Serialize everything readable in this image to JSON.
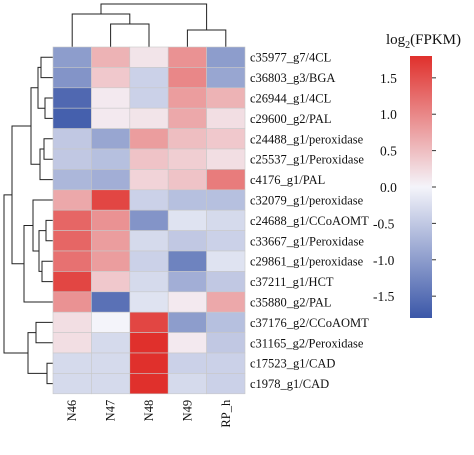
{
  "chart_data": {
    "type": "heatmap",
    "legend_title": "log₂(FPKM)",
    "legend_title_main": "log",
    "legend_title_sub": "2",
    "legend_title_rest": "(FPKM)",
    "legend_placement": "right",
    "color_range": [
      -1.8,
      1.8
    ],
    "color_low": "#3b57a8",
    "color_mid": "#f4f4fa",
    "color_high": "#e0302c",
    "legend_ticks": [
      {
        "value": 1.5,
        "label": "1.5"
      },
      {
        "value": 1.0,
        "label": "1.0"
      },
      {
        "value": 0.5,
        "label": "0.5"
      },
      {
        "value": 0.0,
        "label": "0.0"
      },
      {
        "value": -0.5,
        "label": "-0.5"
      },
      {
        "value": -1.0,
        "label": "-1.0"
      },
      {
        "value": -1.5,
        "label": "-1.5"
      }
    ],
    "columns": [
      "N46",
      "N47",
      "N48",
      "N49",
      "RP_h"
    ],
    "rows": [
      {
        "label": "c35977_g7/4CL",
        "values": [
          -1.0,
          0.6,
          0.15,
          0.9,
          -1.0
        ]
      },
      {
        "label": "c36803_g3/BGA",
        "values": [
          -1.1,
          0.4,
          -0.4,
          1.0,
          -0.9
        ]
      },
      {
        "label": "c26944_g1/4CL",
        "values": [
          -1.6,
          0.1,
          -0.4,
          0.8,
          0.6
        ]
      },
      {
        "label": "c29600_g2/PAL",
        "values": [
          -1.7,
          0.1,
          0.15,
          0.7,
          0.2
        ]
      },
      {
        "label": "c24488_g1/peroxidase",
        "values": [
          -0.5,
          -0.9,
          0.8,
          0.5,
          0.4
        ]
      },
      {
        "label": "c25537_g1/Peroxidase",
        "values": [
          -0.5,
          -0.6,
          0.45,
          0.35,
          0.2
        ]
      },
      {
        "label": "c4176_g1/PAL",
        "values": [
          -0.7,
          -0.8,
          0.3,
          0.45,
          1.1
        ]
      },
      {
        "label": "c32079_g1/peroxidase",
        "values": [
          0.7,
          1.6,
          -0.4,
          -0.6,
          -0.6
        ]
      },
      {
        "label": "c24688_g1/CCoAOMT",
        "values": [
          1.3,
          0.9,
          -1.1,
          -0.2,
          -0.3
        ]
      },
      {
        "label": "c33667_g1/Peroxidase",
        "values": [
          1.3,
          0.8,
          -0.3,
          -0.5,
          -0.4
        ]
      },
      {
        "label": "c29861_g1/peroxidase",
        "values": [
          1.2,
          0.8,
          -0.4,
          -1.3,
          -0.2
        ]
      },
      {
        "label": "c37211_g1/HCT",
        "values": [
          1.6,
          0.4,
          -0.3,
          -0.8,
          -0.5
        ]
      },
      {
        "label": "c35880_g2/PAL",
        "values": [
          0.9,
          -1.5,
          -0.2,
          0.1,
          0.7
        ]
      },
      {
        "label": "c37176_g2/CCoAOMT",
        "values": [
          0.2,
          0.0,
          1.6,
          -1.0,
          -0.6
        ]
      },
      {
        "label": "c31165_g2/Peroxidase",
        "values": [
          0.2,
          -0.3,
          1.8,
          0.1,
          -0.5
        ]
      },
      {
        "label": "c17523_g1/CAD",
        "values": [
          -0.3,
          -0.3,
          1.8,
          -0.4,
          -0.4
        ]
      },
      {
        "label": "c1978_g1/CAD",
        "values": [
          -0.3,
          -0.3,
          1.8,
          -0.3,
          -0.4
        ]
      }
    ],
    "grid": true
  }
}
